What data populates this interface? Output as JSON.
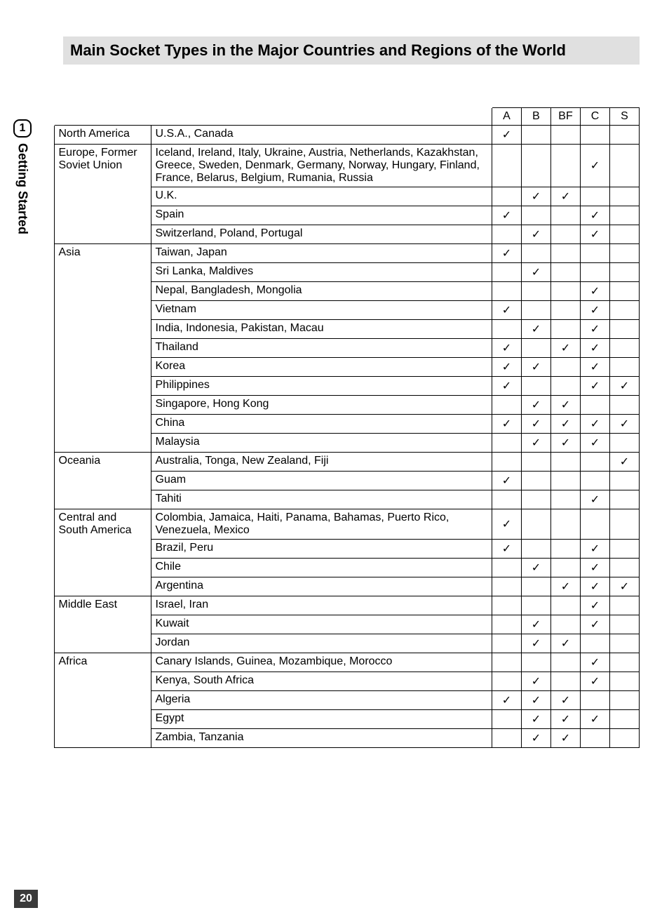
{
  "page": {
    "title": "Main Socket Types in the Major Countries and Regions of the World",
    "tab_number": "1",
    "tab_label": "Getting Started",
    "page_number": "20"
  },
  "table": {
    "columns": [
      "A",
      "B",
      "BF",
      "C",
      "S"
    ],
    "check_mark": "✓",
    "groups": [
      {
        "region": "North America",
        "rows": [
          {
            "country": "U.S.A., Canada",
            "v": [
              true,
              false,
              false,
              false,
              false
            ]
          }
        ]
      },
      {
        "region": "Europe, Former Soviet Union",
        "rows": [
          {
            "country": "Iceland, Ireland, Italy, Ukraine, Austria, Netherlands, Kazakhstan, Greece, Sweden, Denmark, Germany, Norway, Hungary, Finland, France, Belarus, Belgium, Rumania, Russia",
            "v": [
              false,
              false,
              false,
              true,
              false
            ]
          },
          {
            "country": "U.K.",
            "v": [
              false,
              true,
              true,
              false,
              false
            ]
          },
          {
            "country": "Spain",
            "v": [
              true,
              false,
              false,
              true,
              false
            ]
          },
          {
            "country": "Switzerland, Poland, Portugal",
            "v": [
              false,
              true,
              false,
              true,
              false
            ]
          }
        ]
      },
      {
        "region": "Asia",
        "rows": [
          {
            "country": "Taiwan, Japan",
            "v": [
              true,
              false,
              false,
              false,
              false
            ]
          },
          {
            "country": "Sri Lanka, Maldives",
            "v": [
              false,
              true,
              false,
              false,
              false
            ]
          },
          {
            "country": "Nepal, Bangladesh, Mongolia",
            "v": [
              false,
              false,
              false,
              true,
              false
            ]
          },
          {
            "country": "Vietnam",
            "v": [
              true,
              false,
              false,
              true,
              false
            ]
          },
          {
            "country": "India, Indonesia, Pakistan, Macau",
            "v": [
              false,
              true,
              false,
              true,
              false
            ]
          },
          {
            "country": "Thailand",
            "v": [
              true,
              false,
              true,
              true,
              false
            ]
          },
          {
            "country": "Korea",
            "v": [
              true,
              true,
              false,
              true,
              false
            ]
          },
          {
            "country": "Philippines",
            "v": [
              true,
              false,
              false,
              true,
              true
            ]
          },
          {
            "country": "Singapore, Hong Kong",
            "v": [
              false,
              true,
              true,
              false,
              false
            ]
          },
          {
            "country": "China",
            "v": [
              true,
              true,
              true,
              true,
              true
            ]
          },
          {
            "country": "Malaysia",
            "v": [
              false,
              true,
              true,
              true,
              false
            ]
          }
        ]
      },
      {
        "region": "Oceania",
        "rows": [
          {
            "country": "Australia, Tonga, New Zealand, Fiji",
            "v": [
              false,
              false,
              false,
              false,
              true
            ]
          },
          {
            "country": "Guam",
            "v": [
              true,
              false,
              false,
              false,
              false
            ]
          },
          {
            "country": "Tahiti",
            "v": [
              false,
              false,
              false,
              true,
              false
            ]
          }
        ]
      },
      {
        "region": "Central and South America",
        "rows": [
          {
            "country": "Colombia, Jamaica, Haiti, Panama, Bahamas, Puerto Rico, Venezuela, Mexico",
            "v": [
              true,
              false,
              false,
              false,
              false
            ]
          },
          {
            "country": "Brazil, Peru",
            "v": [
              true,
              false,
              false,
              true,
              false
            ]
          },
          {
            "country": "Chile",
            "v": [
              false,
              true,
              false,
              true,
              false
            ]
          },
          {
            "country": "Argentina",
            "v": [
              false,
              false,
              true,
              true,
              true
            ]
          }
        ]
      },
      {
        "region": "Middle East",
        "rows": [
          {
            "country": "Israel, Iran",
            "v": [
              false,
              false,
              false,
              true,
              false
            ]
          },
          {
            "country": "Kuwait",
            "v": [
              false,
              true,
              false,
              true,
              false
            ]
          },
          {
            "country": "Jordan",
            "v": [
              false,
              true,
              true,
              false,
              false
            ]
          }
        ]
      },
      {
        "region": "Africa",
        "rows": [
          {
            "country": "Canary Islands, Guinea, Mozambique, Morocco",
            "v": [
              false,
              false,
              false,
              true,
              false
            ]
          },
          {
            "country": "Kenya, South Africa",
            "v": [
              false,
              true,
              false,
              true,
              false
            ]
          },
          {
            "country": "Algeria",
            "v": [
              true,
              true,
              true,
              false,
              false
            ]
          },
          {
            "country": "Egypt",
            "v": [
              false,
              true,
              true,
              true,
              false
            ]
          },
          {
            "country": "Zambia, Tanzania",
            "v": [
              false,
              true,
              true,
              false,
              false
            ]
          }
        ]
      }
    ]
  }
}
